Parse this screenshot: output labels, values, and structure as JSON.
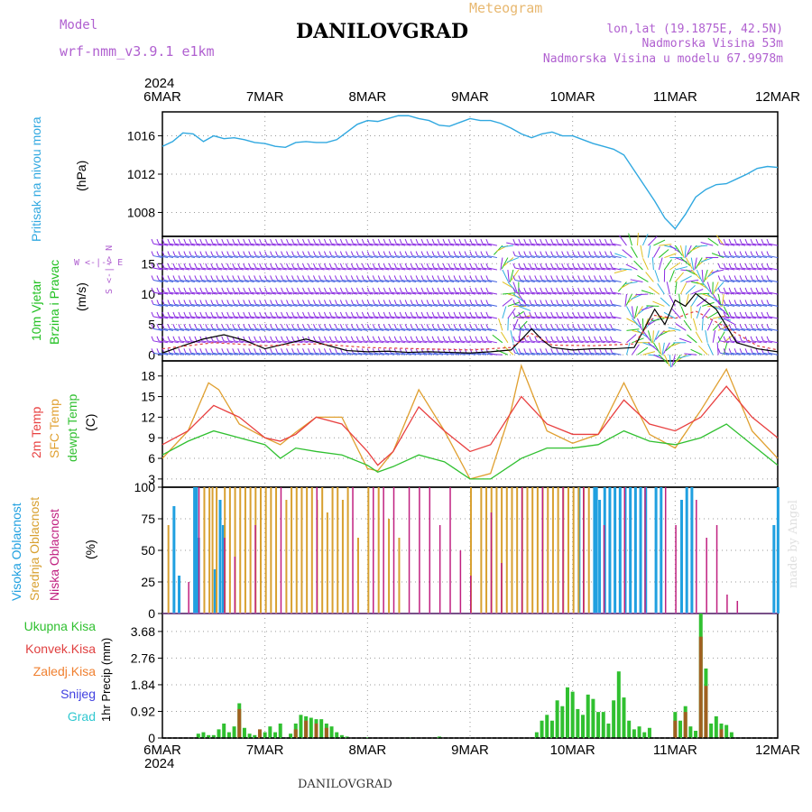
{
  "header": {
    "model_label": "Model",
    "model_name": "wrf-nmm_v3.9.1 e1km",
    "title": "DANILOVGRAD",
    "meteogram_label": "Meteogram",
    "lonlat": "lon,lat (19.1875E, 42.5N)",
    "altitude": "Nadmorska Visina 53m",
    "model_altitude": "Nadmorska Visina u modelu 67.9978m",
    "year_top": "2024",
    "year_bottom": "2024",
    "footer": "DANILOVGRAD",
    "watermark": "made by Angel"
  },
  "colors": {
    "pressure": "#30a8e0",
    "wind_label": "#20c020",
    "t2m": "#e84040",
    "tsfc": "#e0a030",
    "dewpoint": "#30c030",
    "cloud_high": "#20a0e0",
    "cloud_mid": "#d8a030",
    "cloud_low": "#c02080",
    "precip_total": "#30c030",
    "precip_conv": "#e04040",
    "precip_stratiform": "#f08030",
    "snow": "#4040e0",
    "graupel": "#30c8d0"
  },
  "panel_labels": {
    "pressure": [
      "Pritisak na nivou mora",
      "(hPa)"
    ],
    "wind": [
      "10m Vjetar",
      "Brzina i Pravac",
      "(m/s)"
    ],
    "compass": [
      "W <-|-> E",
      "S <-|-> N"
    ],
    "temp": [
      "2m Temp",
      "SFC Temp",
      "dewpt Temp",
      "(C)"
    ],
    "cloud": [
      "Visoka Oblacnost",
      "Srednja Oblacnost",
      "Niska Oblacnost",
      "(%)"
    ],
    "precip_legend": [
      "Ukupna Kisa",
      "Konvek.Kisa",
      "Zaledj.Kisa",
      "Snijeg",
      "Grad"
    ],
    "precip_unit": "1hr Precip (mm)"
  },
  "chart_data": [
    {
      "type": "line",
      "title": "",
      "ylabel": "(hPa)",
      "x_ticks": [
        "6MAR",
        "7MAR",
        "8MAR",
        "9MAR",
        "10MAR",
        "11MAR",
        "12MAR"
      ],
      "y_ticks": [
        1008,
        1012,
        1016
      ],
      "ylim": [
        1005.5,
        1018.5
      ],
      "grid": true,
      "series": [
        {
          "name": "Pritisak na nivou mora",
          "x": [
            0,
            0.1,
            0.2,
            0.3,
            0.4,
            0.5,
            0.6,
            0.7,
            0.8,
            0.9,
            1.0,
            1.1,
            1.2,
            1.3,
            1.4,
            1.5,
            1.6,
            1.7,
            1.8,
            1.9,
            2.0,
            2.1,
            2.2,
            2.3,
            2.4,
            2.5,
            2.6,
            2.7,
            2.8,
            2.9,
            3.0,
            3.1,
            3.2,
            3.3,
            3.4,
            3.5,
            3.6,
            3.7,
            3.8,
            3.9,
            4.0,
            4.1,
            4.2,
            4.3,
            4.4,
            4.5,
            4.6,
            4.7,
            4.8,
            4.9,
            5.0,
            5.1,
            5.2,
            5.3,
            5.4,
            5.5,
            5.6,
            5.7,
            5.8,
            5.9,
            6.0
          ],
          "values": [
            1014.9,
            1015.4,
            1016.3,
            1016.2,
            1015.4,
            1016.0,
            1015.7,
            1015.8,
            1015.6,
            1015.3,
            1015.2,
            1014.9,
            1014.8,
            1015.3,
            1015.4,
            1015.3,
            1015.3,
            1015.6,
            1016.4,
            1017.2,
            1017.6,
            1017.5,
            1017.8,
            1018.1,
            1018.1,
            1017.8,
            1017.6,
            1017.1,
            1017.0,
            1017.4,
            1017.8,
            1017.6,
            1017.6,
            1017.3,
            1016.8,
            1016.2,
            1015.8,
            1016.2,
            1016.4,
            1016.0,
            1016.0,
            1015.6,
            1015.2,
            1014.9,
            1014.6,
            1014.0,
            1012.4,
            1010.8,
            1009.2,
            1007.4,
            1006.3,
            1007.8,
            1009.6,
            1010.4,
            1010.9,
            1011.0,
            1011.5,
            1012.0,
            1012.6,
            1012.8,
            1012.7
          ]
        }
      ]
    },
    {
      "type": "line",
      "title": "",
      "ylabel": "(m/s)",
      "x_ticks": [
        "6MAR",
        "7MAR",
        "8MAR",
        "9MAR",
        "10MAR",
        "11MAR",
        "12MAR"
      ],
      "y_ticks": [
        0,
        5,
        10,
        15
      ],
      "ylim": [
        -1,
        19.5
      ],
      "grid": true,
      "wind_barb_color": "#8a2be2",
      "series": [
        {
          "name": "speed",
          "x": [
            0,
            0.2,
            0.4,
            0.6,
            0.8,
            1.0,
            1.2,
            1.4,
            1.6,
            1.8,
            2.0,
            2.2,
            2.4,
            2.6,
            2.8,
            3.0,
            3.2,
            3.4,
            3.5,
            3.6,
            3.7,
            3.8,
            4.0,
            4.2,
            4.4,
            4.6,
            4.7,
            4.8,
            4.9,
            5.0,
            5.1,
            5.2,
            5.4,
            5.6,
            5.8,
            6.0
          ],
          "values": [
            0.3,
            1.5,
            2.6,
            3.3,
            2.4,
            1.0,
            1.8,
            2.6,
            1.6,
            0.7,
            0.5,
            0.6,
            0.4,
            0.5,
            0.4,
            0.3,
            0.5,
            0.8,
            2.5,
            4.3,
            2.5,
            1.2,
            0.8,
            1.0,
            1.0,
            1.2,
            4.3,
            7.5,
            5.0,
            9.0,
            8.0,
            10.1,
            7.5,
            2.0,
            1.0,
            0.5
          ]
        },
        {
          "name": "gust",
          "x": [
            0,
            0.5,
            1.0,
            1.5,
            2.0,
            2.5,
            3.0,
            3.4,
            3.6,
            3.8,
            4.2,
            4.6,
            4.8,
            5.0,
            5.2,
            5.5,
            5.8,
            6.0
          ],
          "values": [
            1.0,
            2.0,
            1.5,
            1.8,
            1.2,
            1.0,
            0.8,
            1.2,
            3.5,
            1.6,
            1.5,
            1.8,
            6.5,
            6.0,
            7.2,
            4.5,
            1.5,
            0.8
          ]
        }
      ]
    },
    {
      "type": "line",
      "title": "",
      "ylabel": "(C)",
      "x_ticks": [
        "6MAR",
        "7MAR",
        "8MAR",
        "9MAR",
        "10MAR",
        "11MAR",
        "12MAR"
      ],
      "y_ticks": [
        3,
        6,
        9,
        12,
        15,
        18
      ],
      "ylim": [
        1.8,
        20.2
      ],
      "grid": true,
      "series": [
        {
          "name": "2m Temp",
          "x": [
            0,
            0.25,
            0.5,
            0.75,
            1.0,
            1.15,
            1.3,
            1.5,
            1.75,
            2.0,
            2.1,
            2.25,
            2.5,
            2.75,
            3.0,
            3.2,
            3.5,
            3.75,
            4.0,
            4.25,
            4.5,
            4.75,
            5.0,
            5.25,
            5.5,
            5.75,
            6.0
          ],
          "values": [
            8,
            10,
            13.7,
            12,
            9,
            8.5,
            9.5,
            12,
            11,
            7,
            5,
            7,
            13.5,
            10,
            7,
            8,
            15,
            11,
            9.5,
            9.5,
            14.5,
            11,
            10,
            12,
            16.5,
            12,
            9
          ]
        },
        {
          "name": "SFC Temp",
          "x": [
            0,
            0.25,
            0.45,
            0.55,
            0.75,
            1.0,
            1.15,
            1.3,
            1.5,
            1.75,
            2.0,
            2.1,
            2.25,
            2.5,
            2.75,
            3.0,
            3.2,
            3.4,
            3.5,
            3.75,
            4.0,
            4.25,
            4.5,
            4.75,
            5.0,
            5.25,
            5.5,
            5.75,
            6.0
          ],
          "values": [
            6,
            10,
            17,
            16,
            11,
            9,
            8,
            9.8,
            12,
            12,
            4.5,
            4.2,
            7,
            16,
            10,
            3,
            3.8,
            13,
            19.5,
            10,
            8.2,
            9.5,
            17,
            9.5,
            7.5,
            13,
            19,
            10,
            6
          ]
        },
        {
          "name": "dewpt Temp",
          "x": [
            0,
            0.25,
            0.5,
            0.75,
            1.0,
            1.15,
            1.3,
            1.5,
            1.75,
            2.0,
            2.1,
            2.25,
            2.5,
            2.75,
            3.0,
            3.2,
            3.5,
            3.75,
            4.0,
            4.25,
            4.5,
            4.75,
            5.0,
            5.25,
            5.5,
            5.75,
            6.0
          ],
          "values": [
            6.5,
            8.5,
            10,
            9,
            8,
            6,
            7.5,
            7,
            6.5,
            5,
            4,
            4.8,
            6.5,
            5.5,
            3,
            3,
            6,
            7.5,
            7.5,
            8,
            10,
            8.5,
            8,
            9,
            11,
            8,
            5
          ]
        }
      ]
    },
    {
      "type": "bar",
      "title": "",
      "ylabel": "(%)",
      "x_ticks": [
        "6MAR",
        "7MAR",
        "8MAR",
        "9MAR",
        "10MAR",
        "11MAR",
        "12MAR"
      ],
      "y_ticks": [
        0,
        25,
        50,
        75,
        100
      ],
      "ylim": [
        0,
        100
      ],
      "grid": true,
      "series": [
        {
          "name": "Visoka Oblacnost",
          "x": [
            0.1,
            0.15,
            0.3,
            0.32,
            0.34,
            0.5,
            0.55,
            0.58,
            4.05,
            4.2,
            4.22,
            4.25,
            4.3,
            4.35,
            4.4,
            4.45,
            4.5,
            4.55,
            4.6,
            4.65,
            4.7,
            4.8,
            4.85,
            5.05,
            5.1,
            5.15,
            5.95,
            5.99
          ],
          "values": [
            85,
            30,
            100,
            100,
            60,
            35,
            90,
            70,
            100,
            100,
            100,
            90,
            100,
            100,
            100,
            100,
            100,
            100,
            100,
            100,
            100,
            100,
            100,
            90,
            100,
            100,
            70,
            100
          ]
        },
        {
          "name": "Srednja Oblacnost",
          "x": [
            0.05,
            0.4,
            0.45,
            0.48,
            0.52,
            0.6,
            0.65,
            0.7,
            0.75,
            0.8,
            0.85,
            0.9,
            0.95,
            1.0,
            1.05,
            1.1,
            1.2,
            1.25,
            1.3,
            1.35,
            1.4,
            1.45,
            1.5,
            1.55,
            1.6,
            1.65,
            1.7,
            1.75,
            1.8,
            1.9,
            2.0,
            2.1,
            2.2,
            2.3,
            3.0,
            3.1,
            3.15,
            3.2,
            3.25,
            3.3,
            3.35,
            3.4,
            3.45,
            3.5,
            3.55,
            3.6,
            3.65,
            3.7,
            3.75,
            3.8,
            3.85,
            3.9,
            3.95,
            4.0,
            4.05,
            4.1,
            4.15
          ],
          "values": [
            70,
            100,
            100,
            100,
            100,
            100,
            100,
            100,
            100,
            100,
            100,
            100,
            100,
            100,
            100,
            100,
            90,
            100,
            100,
            100,
            100,
            100,
            90,
            100,
            80,
            100,
            100,
            90,
            100,
            60,
            100,
            100,
            75,
            60,
            100,
            100,
            100,
            100,
            100,
            100,
            100,
            100,
            100,
            100,
            100,
            100,
            100,
            100,
            100,
            100,
            100,
            100,
            100,
            100,
            100,
            100,
            100
          ]
        },
        {
          "name": "Niska Oblacnost",
          "x": [
            0.25,
            0.35,
            0.6,
            0.7,
            0.9,
            1.15,
            1.5,
            1.85,
            2.05,
            2.15,
            2.25,
            2.4,
            2.5,
            2.6,
            2.7,
            2.8,
            2.9,
            3.0,
            3.2,
            3.3,
            3.5,
            3.7,
            3.9,
            4.1,
            4.3,
            4.5,
            4.7,
            4.9,
            5.0,
            5.2,
            5.3,
            5.4,
            5.5,
            5.6
          ],
          "values": [
            25,
            100,
            60,
            45,
            70,
            100,
            100,
            100,
            100,
            100,
            100,
            100,
            100,
            100,
            70,
            100,
            50,
            30,
            80,
            40,
            100,
            100,
            100,
            100,
            70,
            100,
            100,
            100,
            70,
            90,
            60,
            70,
            15,
            10
          ]
        }
      ]
    },
    {
      "type": "bar",
      "title": "",
      "ylabel": "1hr Precip (mm)",
      "x_ticks": [
        "6MAR",
        "7MAR",
        "8MAR",
        "9MAR",
        "10MAR",
        "11MAR",
        "12MAR"
      ],
      "y_ticks": [
        0,
        0.92,
        1.84,
        2.76,
        3.68
      ],
      "ylim": [
        0,
        4.3
      ],
      "grid": true,
      "series": [
        {
          "name": "Ukupna Kisa",
          "x": [
            0.35,
            0.4,
            0.45,
            0.5,
            0.55,
            0.6,
            0.65,
            0.7,
            0.75,
            0.8,
            0.85,
            0.9,
            0.95,
            1.0,
            1.05,
            1.1,
            1.15,
            1.25,
            1.3,
            1.35,
            1.4,
            1.45,
            1.5,
            1.55,
            1.6,
            1.65,
            1.7,
            1.75,
            1.8,
            2.0,
            2.4,
            2.7,
            3.65,
            3.7,
            3.75,
            3.8,
            3.85,
            3.9,
            3.95,
            4.0,
            4.05,
            4.1,
            4.15,
            4.2,
            4.25,
            4.3,
            4.35,
            4.4,
            4.45,
            4.5,
            4.55,
            4.6,
            4.65,
            4.7,
            4.75,
            5.0,
            5.05,
            5.1,
            5.15,
            5.2,
            5.25,
            5.3,
            5.35,
            5.4,
            5.45,
            5.5,
            5.55
          ],
          "values": [
            0.15,
            0.2,
            0.1,
            0.1,
            0.3,
            0.5,
            0.2,
            0.4,
            1.2,
            0.35,
            0.15,
            0.1,
            0.15,
            0.2,
            0.4,
            0.2,
            0.5,
            0.15,
            0.5,
            0.8,
            0.75,
            0.7,
            0.65,
            0.65,
            0.5,
            0.4,
            0.2,
            0.1,
            0.05,
            0.02,
            0.02,
            0.05,
            0.2,
            0.6,
            0.8,
            0.6,
            1.3,
            1.1,
            1.75,
            1.6,
            1.0,
            0.8,
            1.5,
            1.35,
            0.9,
            0.9,
            0.5,
            1.3,
            2.3,
            1.4,
            0.6,
            0.3,
            0.4,
            0.2,
            0.35,
            0.9,
            0.6,
            1.1,
            0.4,
            0.25,
            4.3,
            2.4,
            0.5,
            0.75,
            0.5,
            0.45,
            0.2
          ]
        },
        {
          "name": "Konvek.Kisa",
          "x": [
            0.75,
            0.95,
            1.3,
            1.4,
            1.5,
            1.6,
            5.0,
            5.1,
            5.25,
            5.3,
            5.45
          ],
          "values": [
            1.0,
            0.3,
            0.3,
            0.6,
            0.5,
            0.35,
            0.6,
            0.9,
            3.5,
            1.8,
            0.3
          ]
        }
      ]
    }
  ]
}
